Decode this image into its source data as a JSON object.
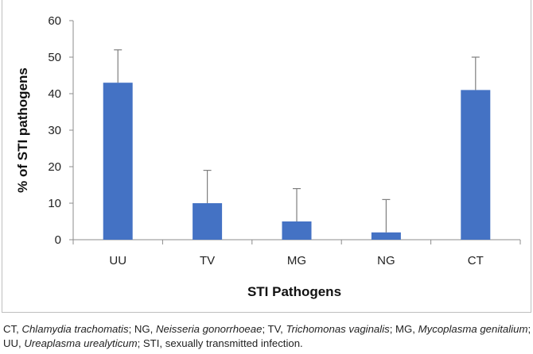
{
  "chart_data": {
    "type": "bar",
    "title": "",
    "categories": [
      "UU",
      "TV",
      "MG",
      "NG",
      "CT"
    ],
    "values": [
      43,
      10,
      5,
      2,
      41
    ],
    "error_upper": [
      9,
      9,
      9,
      9,
      9
    ],
    "xlabel": "STI Pathogens",
    "ylabel": "% of STI pathogens",
    "ylim": [
      0,
      60
    ],
    "yticks": [
      0,
      10,
      20,
      30,
      40,
      50,
      60
    ],
    "grid": false,
    "bar_color": "#4472C4",
    "errorbar_color": "#7f7f7f"
  },
  "caption": {
    "parts": [
      {
        "text": "CT, ",
        "italic": false
      },
      {
        "text": "Chlamydia trachomatis",
        "italic": true
      },
      {
        "text": "; NG, ",
        "italic": false
      },
      {
        "text": "Neisseria gonorrhoeae",
        "italic": true
      },
      {
        "text": "; TV, ",
        "italic": false
      },
      {
        "text": "Trichomonas vaginalis",
        "italic": true
      },
      {
        "text": "; MG, ",
        "italic": false
      },
      {
        "text": "Mycoplasma genitalium",
        "italic": true
      },
      {
        "text": "; UU, ",
        "italic": false
      },
      {
        "text": "Ureaplasma urealyticum",
        "italic": true
      },
      {
        "text": "; STI, sexually transmitted infection.",
        "italic": false
      }
    ]
  }
}
